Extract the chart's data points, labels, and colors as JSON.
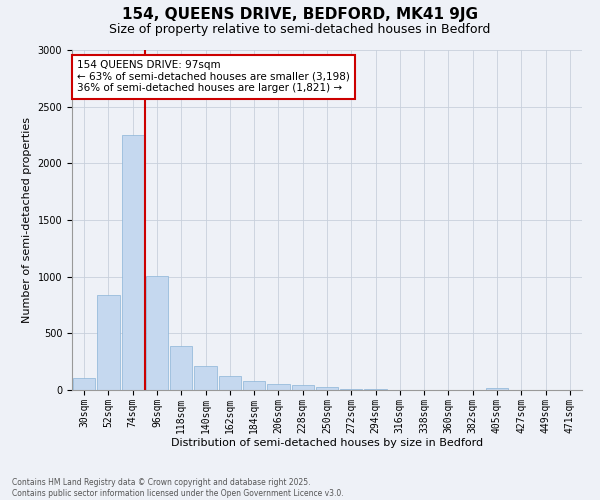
{
  "title_line1": "154, QUEENS DRIVE, BEDFORD, MK41 9JG",
  "title_line2": "Size of property relative to semi-detached houses in Bedford",
  "xlabel": "Distribution of semi-detached houses by size in Bedford",
  "ylabel": "Number of semi-detached properties",
  "categories": [
    "30sqm",
    "52sqm",
    "74sqm",
    "96sqm",
    "118sqm",
    "140sqm",
    "162sqm",
    "184sqm",
    "206sqm",
    "228sqm",
    "250sqm",
    "272sqm",
    "294sqm",
    "316sqm",
    "338sqm",
    "360sqm",
    "382sqm",
    "405sqm",
    "427sqm",
    "449sqm",
    "471sqm"
  ],
  "values": [
    110,
    840,
    2250,
    1010,
    390,
    210,
    120,
    80,
    55,
    40,
    25,
    10,
    5,
    2,
    1,
    0,
    0,
    15,
    0,
    0,
    0
  ],
  "bar_color": "#c5d8ef",
  "bar_edge_color": "#8ab4d8",
  "annotation_title": "154 QUEENS DRIVE: 97sqm",
  "annotation_line2": "← 63% of semi-detached houses are smaller (3,198)",
  "annotation_line3": "36% of semi-detached houses are larger (1,821) →",
  "annotation_box_color": "#ffffff",
  "annotation_border_color": "#cc0000",
  "vline_color": "#cc0000",
  "ylim": [
    0,
    3000
  ],
  "yticks": [
    0,
    500,
    1000,
    1500,
    2000,
    2500,
    3000
  ],
  "grid_color": "#c8d0dc",
  "bg_color": "#eef1f7",
  "footnote_line1": "Contains HM Land Registry data © Crown copyright and database right 2025.",
  "footnote_line2": "Contains public sector information licensed under the Open Government Licence v3.0.",
  "title_fontsize": 11,
  "subtitle_fontsize": 9,
  "tick_fontsize": 7,
  "label_fontsize": 8,
  "annot_fontsize": 7.5
}
